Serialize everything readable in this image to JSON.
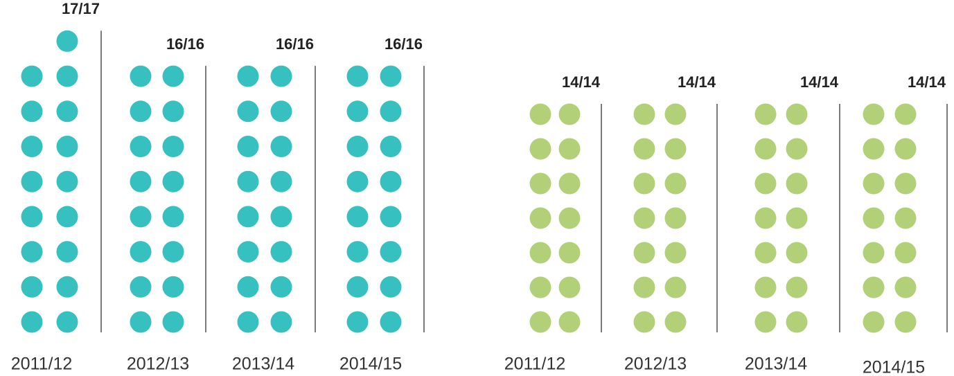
{
  "chart_data": [
    {
      "type": "dot",
      "categories": [
        "2011/12",
        "2012/13",
        "2013/14",
        "2014/15"
      ],
      "values": [
        17,
        16,
        16,
        16
      ],
      "value_labels": [
        "17/17",
        "16/16",
        "16/16",
        "16/16"
      ],
      "color": "#36c0c0"
    },
    {
      "type": "dot",
      "categories": [
        "2011/12",
        "2012/13",
        "2013/14",
        "2014/15"
      ],
      "values": [
        14,
        14,
        14,
        14
      ],
      "value_labels": [
        "14/14",
        "14/14",
        "14/14",
        "14/14"
      ],
      "color": "#b2d077"
    }
  ]
}
